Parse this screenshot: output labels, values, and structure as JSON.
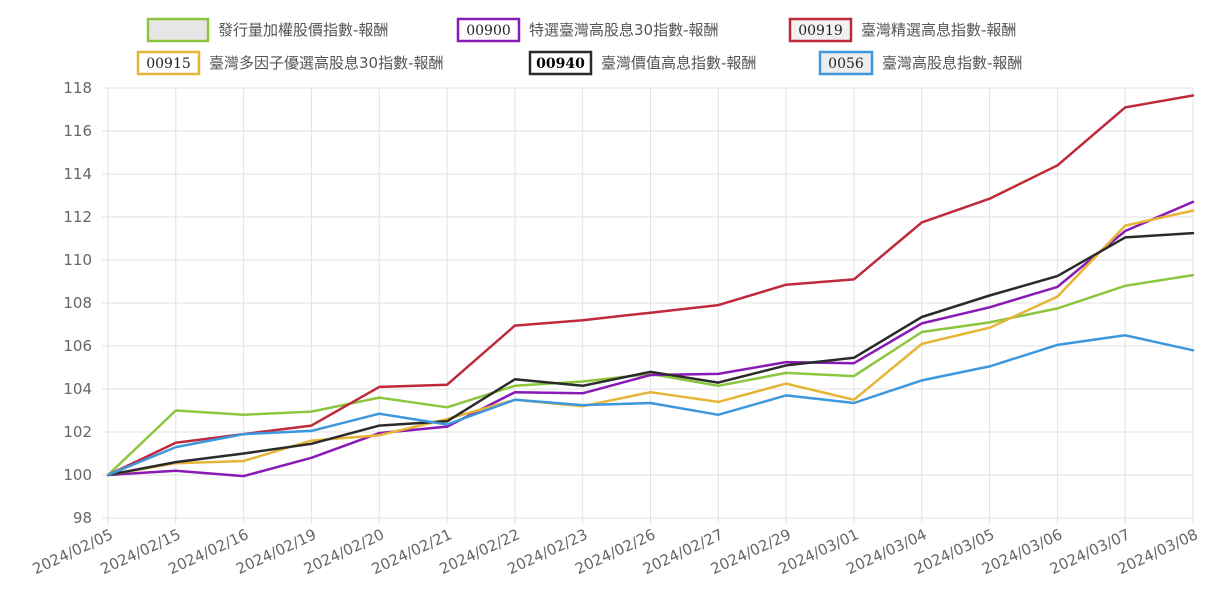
{
  "chart_data": {
    "type": "line",
    "ylim": [
      98,
      118
    ],
    "yticks": [
      98,
      100,
      102,
      104,
      106,
      108,
      110,
      112,
      114,
      116,
      118
    ],
    "grid": true,
    "legend_position": "top",
    "categories": [
      "2024/02/05",
      "2024/02/15",
      "2024/02/16",
      "2024/02/19",
      "2024/02/20",
      "2024/02/21",
      "2024/02/22",
      "2024/02/23",
      "2024/02/26",
      "2024/02/27",
      "2024/02/29",
      "2024/03/01",
      "2024/03/04",
      "2024/03/05",
      "2024/03/06",
      "2024/03/07",
      "2024/03/08"
    ],
    "series": [
      {
        "name": "發行量加權股價指數-報酬",
        "code": "",
        "color": "#8cc63f",
        "box_fill": "#e6e6e6",
        "values": [
          100,
          103.0,
          102.8,
          102.95,
          103.6,
          103.15,
          104.15,
          104.35,
          104.7,
          104.15,
          104.75,
          104.6,
          106.65,
          107.1,
          107.75,
          108.8,
          109.3
        ]
      },
      {
        "name": "特選臺灣高股息30指數-報酬",
        "code": "00900",
        "color": "#8a1ab5",
        "box_fill": "#ffffff",
        "values": [
          100,
          100.2,
          99.95,
          100.8,
          101.95,
          102.25,
          103.85,
          103.8,
          104.65,
          104.7,
          105.25,
          105.2,
          107.05,
          107.8,
          108.75,
          111.35,
          112.7
        ]
      },
      {
        "name": "臺灣精選高息指數-報酬",
        "code": "00919",
        "color": "#be2a3c",
        "box_fill": "#f2f2f2",
        "values": [
          100,
          101.5,
          101.9,
          102.3,
          104.1,
          104.2,
          106.95,
          107.2,
          107.55,
          107.9,
          108.85,
          109.1,
          111.75,
          112.85,
          114.4,
          117.1,
          117.65
        ]
      },
      {
        "name": "臺灣多因子優選高股息30指數-報酬",
        "code": "00915",
        "color": "#e6b437",
        "box_fill": "#ffffff",
        "values": [
          100,
          100.55,
          100.65,
          101.6,
          101.85,
          102.6,
          103.5,
          103.2,
          103.85,
          103.4,
          104.25,
          103.5,
          106.1,
          106.85,
          108.3,
          111.6,
          112.3
        ]
      },
      {
        "name": "臺灣價值高息指數-報酬",
        "code": "00940",
        "color": "#2b2b2b",
        "box_fill": "#ffffff",
        "values": [
          100,
          100.6,
          101.0,
          101.45,
          102.3,
          102.5,
          104.45,
          104.15,
          104.8,
          104.3,
          105.1,
          105.45,
          107.35,
          108.35,
          109.25,
          111.05,
          111.25
        ]
      },
      {
        "name": "臺灣高股息指數-報酬",
        "code": "0056",
        "color": "#3d97dc",
        "box_fill": "#eeeeee",
        "values": [
          100,
          101.3,
          101.9,
          102.05,
          102.85,
          102.35,
          103.5,
          103.25,
          103.35,
          102.8,
          103.7,
          103.35,
          104.4,
          105.05,
          106.05,
          106.5,
          105.8
        ]
      }
    ]
  }
}
